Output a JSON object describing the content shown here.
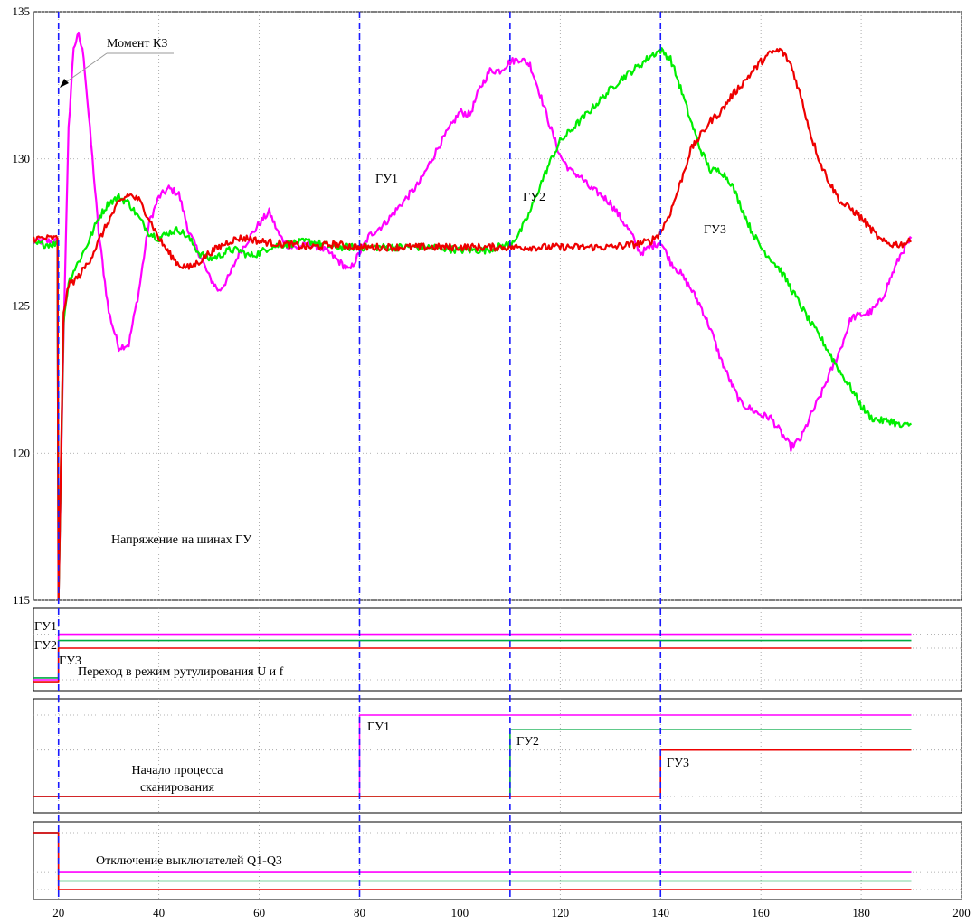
{
  "chart_data": [
    {
      "type": "line",
      "title": "",
      "xlabel": "",
      "ylabel": "",
      "xlim": [
        15,
        200
      ],
      "ylim": [
        115,
        135
      ],
      "x_ticks": [
        "20",
        "40",
        "60",
        "80",
        "100",
        "120",
        "140",
        "160",
        "180",
        "200"
      ],
      "y_ticks": [
        "115",
        "120",
        "125",
        "130",
        "135"
      ],
      "grid": true,
      "annotations": {
        "fault_moment": "Момент КЗ",
        "panel_label": "Напряжение на шинах ГУ",
        "series_labels": [
          "ГУ1",
          "ГУ2",
          "ГУ3"
        ]
      },
      "event_lines_x": [
        20,
        80,
        110,
        140
      ],
      "series": [
        {
          "color": "#ff00ff",
          "points": [
            [
              15,
              127.2
            ],
            [
              19.8,
              127.2
            ],
            [
              20,
              115
            ],
            [
              21,
              124
            ],
            [
              22,
              131
            ],
            [
              23,
              133.8
            ],
            [
              24,
              134.2
            ],
            [
              25,
              133.5
            ],
            [
              26,
              131.5
            ],
            [
              28,
              127.5
            ],
            [
              30,
              124.8
            ],
            [
              32,
              123.6
            ],
            [
              34,
              123.7
            ],
            [
              36,
              125.5
            ],
            [
              38,
              127.8
            ],
            [
              40,
              128.7
            ],
            [
              42,
              129
            ],
            [
              44,
              128.8
            ],
            [
              46,
              127.5
            ],
            [
              48,
              126.8
            ],
            [
              50,
              126
            ],
            [
              52,
              125.5
            ],
            [
              54,
              126
            ],
            [
              56,
              126.8
            ],
            [
              58,
              127.3
            ],
            [
              60,
              127.8
            ],
            [
              62,
              128.2
            ],
            [
              64,
              127.4
            ],
            [
              66,
              127
            ],
            [
              68,
              127
            ],
            [
              70,
              127.1
            ],
            [
              72,
              127
            ],
            [
              74,
              126.8
            ],
            [
              76,
              126.5
            ],
            [
              78,
              126.2
            ],
            [
              80,
              126.8
            ],
            [
              82,
              127.4
            ],
            [
              85,
              127.8
            ],
            [
              88,
              128.4
            ],
            [
              92,
              129.2
            ],
            [
              96,
              130.5
            ],
            [
              100,
              131.6
            ],
            [
              102,
              131.5
            ],
            [
              104,
              132.4
            ],
            [
              106,
              133
            ],
            [
              108,
              133
            ],
            [
              110,
              133.3
            ],
            [
              112,
              133.4
            ],
            [
              114,
              133.2
            ],
            [
              116,
              132.2
            ],
            [
              118,
              131.1
            ],
            [
              120,
              130.1
            ],
            [
              122,
              129.6
            ],
            [
              124,
              129.4
            ],
            [
              126,
              129
            ],
            [
              128,
              128.8
            ],
            [
              130,
              128.5
            ],
            [
              132,
              128
            ],
            [
              134,
              127.5
            ],
            [
              136,
              126.8
            ],
            [
              138,
              127
            ],
            [
              140,
              127.2
            ],
            [
              142,
              126.5
            ],
            [
              144,
              126.1
            ],
            [
              146,
              125.6
            ],
            [
              148,
              125
            ],
            [
              150,
              124.2
            ],
            [
              152,
              123.2
            ],
            [
              154,
              122.4
            ],
            [
              156,
              121.7
            ],
            [
              158,
              121.5
            ],
            [
              160,
              121.3
            ],
            [
              162,
              121.2
            ],
            [
              164,
              120.7
            ],
            [
              166,
              120.2
            ],
            [
              168,
              120.5
            ],
            [
              170,
              121.3
            ],
            [
              172,
              122
            ],
            [
              174,
              122.8
            ],
            [
              176,
              123.6
            ],
            [
              178,
              124.6
            ],
            [
              180,
              124.7
            ],
            [
              182,
              124.8
            ],
            [
              184,
              125.2
            ],
            [
              186,
              126
            ],
            [
              188,
              126.8
            ],
            [
              190,
              127.3
            ]
          ]
        },
        {
          "color": "#00ee00",
          "points": [
            [
              15,
              127.1
            ],
            [
              19.8,
              127.1
            ],
            [
              20,
              115
            ],
            [
              21,
              124.5
            ],
            [
              22,
              125.8
            ],
            [
              23,
              126.2
            ],
            [
              24,
              126.5
            ],
            [
              26,
              127.2
            ],
            [
              28,
              128
            ],
            [
              30,
              128.5
            ],
            [
              32,
              128.7
            ],
            [
              34,
              128.5
            ],
            [
              36,
              128
            ],
            [
              38,
              127.5
            ],
            [
              40,
              127.3
            ],
            [
              42,
              127.5
            ],
            [
              44,
              127.6
            ],
            [
              46,
              127.3
            ],
            [
              48,
              126.8
            ],
            [
              50,
              126.6
            ],
            [
              52,
              126.7
            ],
            [
              54,
              126.9
            ],
            [
              56,
              126.9
            ],
            [
              58,
              126.7
            ],
            [
              60,
              126.8
            ],
            [
              62,
              127
            ],
            [
              65,
              127.1
            ],
            [
              70,
              127.2
            ],
            [
              75,
              127
            ],
            [
              80,
              127
            ],
            [
              85,
              127
            ],
            [
              90,
              127
            ],
            [
              95,
              127
            ],
            [
              100,
              126.9
            ],
            [
              105,
              126.9
            ],
            [
              110,
              127.1
            ],
            [
              112,
              127.5
            ],
            [
              114,
              128.2
            ],
            [
              116,
              129.1
            ],
            [
              118,
              129.9
            ],
            [
              120,
              130.6
            ],
            [
              124,
              131.3
            ],
            [
              128,
              132
            ],
            [
              132,
              132.7
            ],
            [
              136,
              133.2
            ],
            [
              138,
              133.5
            ],
            [
              140,
              133.7
            ],
            [
              142,
              133.4
            ],
            [
              144,
              132.4
            ],
            [
              146,
              131.3
            ],
            [
              148,
              130.3
            ],
            [
              150,
              129.6
            ],
            [
              152,
              129.6
            ],
            [
              154,
              129.2
            ],
            [
              156,
              128.4
            ],
            [
              158,
              127.6
            ],
            [
              160,
              127
            ],
            [
              162,
              126.6
            ],
            [
              164,
              126.2
            ],
            [
              166,
              125.6
            ],
            [
              168,
              125
            ],
            [
              170,
              124.4
            ],
            [
              172,
              123.9
            ],
            [
              174,
              123.3
            ],
            [
              176,
              122.7
            ],
            [
              178,
              122.2
            ],
            [
              180,
              121.6
            ],
            [
              182,
              121.2
            ],
            [
              184,
              121.1
            ],
            [
              186,
              121.1
            ],
            [
              188,
              120.9
            ],
            [
              190,
              121
            ]
          ]
        },
        {
          "color": "#ee0000",
          "points": [
            [
              15,
              127.3
            ],
            [
              19.8,
              127.3
            ],
            [
              20,
              115
            ],
            [
              21,
              124.8
            ],
            [
              22,
              125.7
            ],
            [
              24,
              126
            ],
            [
              26,
              126.5
            ],
            [
              28,
              127.2
            ],
            [
              30,
              127.9
            ],
            [
              32,
              128.5
            ],
            [
              34,
              128.8
            ],
            [
              36,
              128.6
            ],
            [
              38,
              128
            ],
            [
              40,
              127.3
            ],
            [
              42,
              126.8
            ],
            [
              44,
              126.4
            ],
            [
              46,
              126.3
            ],
            [
              48,
              126.5
            ],
            [
              50,
              126.8
            ],
            [
              52,
              127
            ],
            [
              54,
              127.2
            ],
            [
              56,
              127.3
            ],
            [
              58,
              127.3
            ],
            [
              60,
              127.2
            ],
            [
              65,
              127.1
            ],
            [
              70,
              127
            ],
            [
              75,
              127.1
            ],
            [
              80,
              127
            ],
            [
              85,
              127
            ],
            [
              90,
              127
            ],
            [
              95,
              127
            ],
            [
              100,
              127
            ],
            [
              105,
              127
            ],
            [
              110,
              127
            ],
            [
              115,
              127
            ],
            [
              120,
              127
            ],
            [
              125,
              127
            ],
            [
              130,
              127
            ],
            [
              135,
              127.1
            ],
            [
              138,
              127.2
            ],
            [
              140,
              127.5
            ],
            [
              142,
              128.2
            ],
            [
              144,
              129.2
            ],
            [
              146,
              130.3
            ],
            [
              148,
              130.8
            ],
            [
              150,
              131.3
            ],
            [
              152,
              131.6
            ],
            [
              154,
              132.1
            ],
            [
              156,
              132.5
            ],
            [
              158,
              132.9
            ],
            [
              160,
              133.3
            ],
            [
              162,
              133.6
            ],
            [
              164,
              133.7
            ],
            [
              166,
              133.2
            ],
            [
              168,
              132.1
            ],
            [
              170,
              130.8
            ],
            [
              172,
              129.8
            ],
            [
              174,
              129.1
            ],
            [
              176,
              128.5
            ],
            [
              178,
              128.3
            ],
            [
              180,
              128
            ],
            [
              182,
              127.6
            ],
            [
              184,
              127.2
            ],
            [
              186,
              127.1
            ],
            [
              188,
              127.1
            ],
            [
              190,
              127.2
            ]
          ]
        }
      ]
    },
    {
      "type": "line",
      "panel_label": "Переход в режим рутулирования U и f",
      "series_labels": [
        "ГУ1",
        "ГУ2",
        "ГУ3"
      ],
      "series": [
        {
          "color": "#ff00ff",
          "points": [
            [
              15,
              0
            ],
            [
              20,
              0
            ],
            [
              20,
              0.72
            ],
            [
              190,
              0.72
            ]
          ]
        },
        {
          "color": "#00aa44",
          "points": [
            [
              15,
              0.03
            ],
            [
              20,
              0.03
            ],
            [
              20,
              0.62
            ],
            [
              190,
              0.62
            ]
          ]
        },
        {
          "color": "#ee0000",
          "points": [
            [
              15,
              -0.03
            ],
            [
              20,
              -0.03
            ],
            [
              20,
              0.5
            ],
            [
              190,
              0.5
            ]
          ]
        }
      ]
    },
    {
      "type": "line",
      "panel_label": "Начало процесса сканирования",
      "series_labels": [
        "ГУ1",
        "ГУ2",
        "ГУ3"
      ],
      "series": [
        {
          "color": "#ff00ff",
          "points": [
            [
              15,
              0
            ],
            [
              80,
              0
            ],
            [
              80,
              1
            ],
            [
              190,
              1
            ]
          ]
        },
        {
          "color": "#00aa44",
          "points": [
            [
              15,
              0
            ],
            [
              110,
              0
            ],
            [
              110,
              0.82
            ],
            [
              190,
              0.82
            ]
          ]
        },
        {
          "color": "#ee0000",
          "points": [
            [
              15,
              0
            ],
            [
              140,
              0
            ],
            [
              140,
              0.57
            ],
            [
              190,
              0.57
            ]
          ]
        }
      ]
    },
    {
      "type": "line",
      "panel_label": "Отключение  выключателей  Q1-Q3",
      "series": [
        {
          "color": "#ff00ff",
          "points": [
            [
              15,
              1
            ],
            [
              20,
              1
            ],
            [
              20,
              0.3
            ],
            [
              190,
              0.3
            ]
          ]
        },
        {
          "color": "#00aa44",
          "points": [
            [
              15,
              1
            ],
            [
              20,
              1
            ],
            [
              20,
              0.15
            ],
            [
              190,
              0.15
            ]
          ]
        },
        {
          "color": "#ee0000",
          "points": [
            [
              15,
              1
            ],
            [
              20,
              1
            ],
            [
              20,
              0
            ],
            [
              190,
              0
            ]
          ]
        }
      ]
    }
  ]
}
